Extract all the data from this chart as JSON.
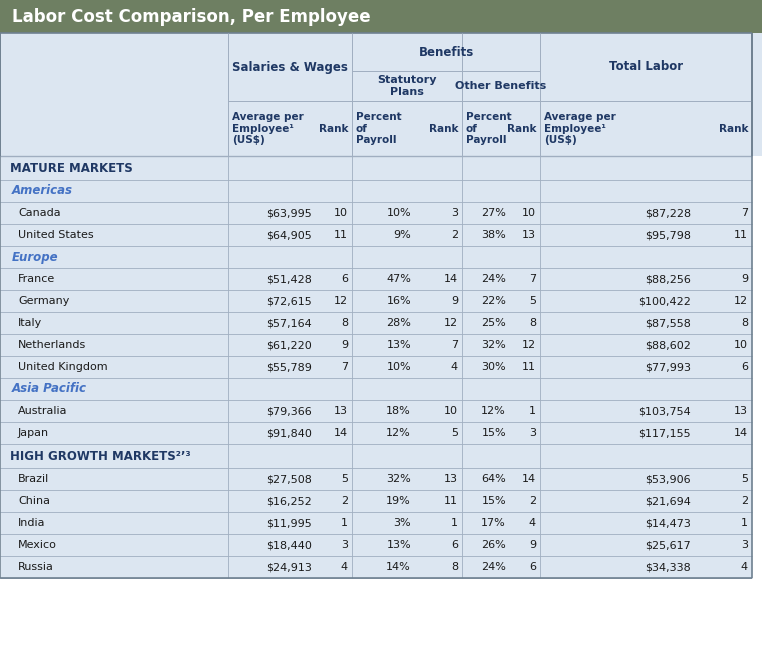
{
  "title": "Labor Cost Comparison, Per Employee",
  "title_bg": "#6e7f62",
  "title_fg": "#ffffff",
  "table_bg": "#dce6f1",
  "header_fg": "#1f3864",
  "section_fg": "#1f3864",
  "subsection_fg": "#4472c4",
  "data_fg": "#1a1a1a",
  "line_color": "#a0aec0",
  "border_color": "#6e8090",
  "sections": [
    {
      "name": "MATURE MARKETS",
      "subsections": [
        {
          "name": "Americas",
          "countries": [
            {
              "name": "Canada",
              "sal": "$63,995",
              "sal_rank": "10",
              "stat": "10%",
              "stat_rank": "3",
              "other": "27%",
              "other_rank": "10",
              "total": "$87,228",
              "total_rank": "7"
            },
            {
              "name": "United States",
              "sal": "$64,905",
              "sal_rank": "11",
              "stat": "9%",
              "stat_rank": "2",
              "other": "38%",
              "other_rank": "13",
              "total": "$95,798",
              "total_rank": "11"
            }
          ]
        },
        {
          "name": "Europe",
          "countries": [
            {
              "name": "France",
              "sal": "$51,428",
              "sal_rank": "6",
              "stat": "47%",
              "stat_rank": "14",
              "other": "24%",
              "other_rank": "7",
              "total": "$88,256",
              "total_rank": "9"
            },
            {
              "name": "Germany",
              "sal": "$72,615",
              "sal_rank": "12",
              "stat": "16%",
              "stat_rank": "9",
              "other": "22%",
              "other_rank": "5",
              "total": "$100,422",
              "total_rank": "12"
            },
            {
              "name": "Italy",
              "sal": "$57,164",
              "sal_rank": "8",
              "stat": "28%",
              "stat_rank": "12",
              "other": "25%",
              "other_rank": "8",
              "total": "$87,558",
              "total_rank": "8"
            },
            {
              "name": "Netherlands",
              "sal": "$61,220",
              "sal_rank": "9",
              "stat": "13%",
              "stat_rank": "7",
              "other": "32%",
              "other_rank": "12",
              "total": "$88,602",
              "total_rank": "10"
            },
            {
              "name": "United Kingdom",
              "sal": "$55,789",
              "sal_rank": "7",
              "stat": "10%",
              "stat_rank": "4",
              "other": "30%",
              "other_rank": "11",
              "total": "$77,993",
              "total_rank": "6"
            }
          ]
        },
        {
          "name": "Asia Pacific",
          "countries": [
            {
              "name": "Australia",
              "sal": "$79,366",
              "sal_rank": "13",
              "stat": "18%",
              "stat_rank": "10",
              "other": "12%",
              "other_rank": "1",
              "total": "$103,754",
              "total_rank": "13"
            },
            {
              "name": "Japan",
              "sal": "$91,840",
              "sal_rank": "14",
              "stat": "12%",
              "stat_rank": "5",
              "other": "15%",
              "other_rank": "3",
              "total": "$117,155",
              "total_rank": "14"
            }
          ]
        }
      ]
    },
    {
      "name": "HIGH GROWTH MARKETS²’³",
      "subsections": [
        {
          "name": "",
          "countries": [
            {
              "name": "Brazil",
              "sal": "$27,508",
              "sal_rank": "5",
              "stat": "32%",
              "stat_rank": "13",
              "other": "64%",
              "other_rank": "14",
              "total": "$53,906",
              "total_rank": "5"
            },
            {
              "name": "China",
              "sal": "$16,252",
              "sal_rank": "2",
              "stat": "19%",
              "stat_rank": "11",
              "other": "15%",
              "other_rank": "2",
              "total": "$21,694",
              "total_rank": "2"
            },
            {
              "name": "India",
              "sal": "$11,995",
              "sal_rank": "1",
              "stat": "3%",
              "stat_rank": "1",
              "other": "17%",
              "other_rank": "4",
              "total": "$14,473",
              "total_rank": "1"
            },
            {
              "name": "Mexico",
              "sal": "$18,440",
              "sal_rank": "3",
              "stat": "13%",
              "stat_rank": "6",
              "other": "26%",
              "other_rank": "9",
              "total": "$25,617",
              "total_rank": "3"
            },
            {
              "name": "Russia",
              "sal": "$24,913",
              "sal_rank": "4",
              "stat": "14%",
              "stat_rank": "8",
              "other": "24%",
              "other_rank": "6",
              "total": "$34,338",
              "total_rank": "4"
            }
          ]
        }
      ]
    }
  ]
}
